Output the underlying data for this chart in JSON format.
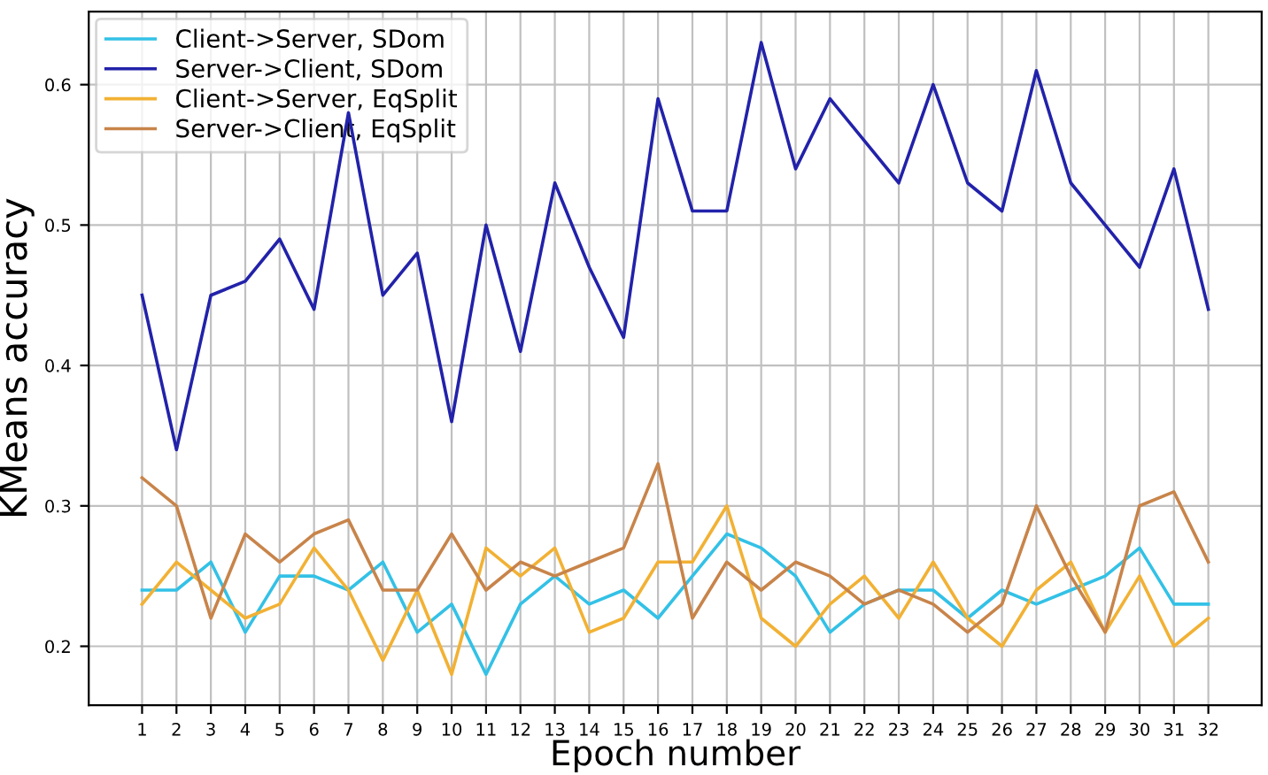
{
  "chart_data": {
    "type": "line",
    "xlabel": "Epoch number",
    "ylabel": "KMeans accuracy",
    "x": [
      1,
      2,
      3,
      4,
      5,
      6,
      7,
      8,
      9,
      10,
      11,
      12,
      13,
      14,
      15,
      16,
      17,
      18,
      19,
      20,
      21,
      22,
      23,
      24,
      25,
      26,
      27,
      28,
      29,
      30,
      31,
      32
    ],
    "xlim": [
      -0.55,
      33.55
    ],
    "xticks": [
      1,
      2,
      3,
      4,
      5,
      6,
      7,
      8,
      9,
      10,
      11,
      12,
      13,
      14,
      15,
      16,
      17,
      18,
      19,
      20,
      21,
      22,
      23,
      24,
      25,
      26,
      27,
      28,
      29,
      30,
      31,
      32
    ],
    "ylim": [
      0.158,
      0.652
    ],
    "yticks": [
      0.2,
      0.3,
      0.4,
      0.5,
      0.6
    ],
    "grid": true,
    "legend": "top left",
    "marker": "none",
    "line_style": "solid",
    "series": [
      {
        "name": "Client->Server, SDom",
        "color": "#33c1e6",
        "values": [
          0.24,
          0.24,
          0.26,
          0.21,
          0.25,
          0.25,
          0.24,
          0.26,
          0.21,
          0.23,
          0.18,
          0.23,
          0.25,
          0.23,
          0.24,
          0.22,
          0.25,
          0.28,
          0.27,
          0.25,
          0.21,
          0.23,
          0.24,
          0.24,
          0.22,
          0.24,
          0.23,
          0.24,
          0.25,
          0.27,
          0.23,
          0.23
        ]
      },
      {
        "name": "Server->Client, SDom",
        "color": "#2222aa",
        "values": [
          0.45,
          0.34,
          0.45,
          0.46,
          0.49,
          0.44,
          0.58,
          0.45,
          0.48,
          0.36,
          0.5,
          0.41,
          0.53,
          0.47,
          0.42,
          0.59,
          0.51,
          0.51,
          0.63,
          0.54,
          0.59,
          0.56,
          0.53,
          0.6,
          0.53,
          0.51,
          0.61,
          0.53,
          0.5,
          0.47,
          0.54,
          0.44
        ]
      },
      {
        "name": "Client->Server, EqSplit",
        "color": "#f2b134",
        "values": [
          0.23,
          0.26,
          0.24,
          0.22,
          0.23,
          0.27,
          0.24,
          0.19,
          0.24,
          0.18,
          0.27,
          0.25,
          0.27,
          0.21,
          0.22,
          0.26,
          0.26,
          0.3,
          0.22,
          0.2,
          0.23,
          0.25,
          0.22,
          0.26,
          0.22,
          0.2,
          0.24,
          0.26,
          0.21,
          0.25,
          0.2,
          0.22
        ]
      },
      {
        "name": "Server->Client, EqSplit",
        "color": "#c8844a",
        "values": [
          0.32,
          0.3,
          0.22,
          0.28,
          0.26,
          0.28,
          0.29,
          0.24,
          0.24,
          0.28,
          0.24,
          0.26,
          0.25,
          0.26,
          0.27,
          0.33,
          0.22,
          0.26,
          0.24,
          0.26,
          0.25,
          0.23,
          0.24,
          0.23,
          0.21,
          0.23,
          0.3,
          0.25,
          0.21,
          0.3,
          0.31,
          0.26
        ]
      }
    ]
  }
}
